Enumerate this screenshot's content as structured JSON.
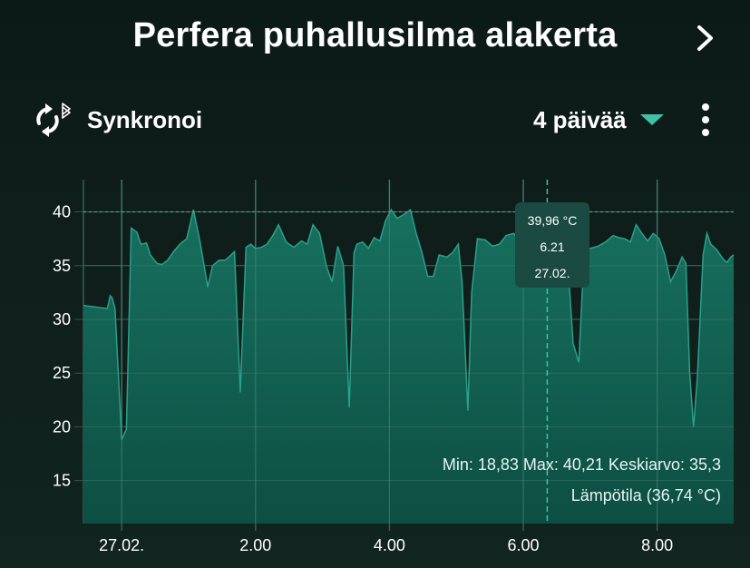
{
  "header": {
    "title": "Perfera puhallusilma alakerta",
    "next_icon": "chevron-right-icon"
  },
  "toolbar": {
    "sync_label": "Synkronoi",
    "sync_icon": "sync-bluetooth-icon",
    "range_label": "4 päivää",
    "range_caret_icon": "caret-down-icon",
    "more_icon": "more-vertical-icon"
  },
  "colors": {
    "accent": "#3fc2a7",
    "area_fill": "#0f5a4c",
    "line": "#2aa08a",
    "background": "#0f1f1b",
    "tooltip_bg": "#1a4a42"
  },
  "tooltip": {
    "temperature": "39,96 °C",
    "time": "6.21",
    "date": "27.02."
  },
  "stats_text": "Min: 18,83 Max: 40,21 Keskiarvo: 35,3",
  "legend_text": "Lämpötila (36,74 °C)",
  "chart_data": {
    "type": "area",
    "ylim": [
      11,
      43
    ],
    "yticks": [
      15,
      20,
      25,
      30,
      35,
      40
    ],
    "ytick_labels": [
      "15",
      "20",
      "25",
      "30",
      "35",
      "40"
    ],
    "xlim": [
      0,
      6.8
    ],
    "xticks": [
      0.4,
      1.8,
      3.2,
      4.6,
      6.0
    ],
    "xtick_labels": [
      "27.02.",
      "2.00",
      "4.00",
      "6.00",
      "8.00"
    ],
    "reference_line": 40,
    "cursor_x": 4.85,
    "grid": true,
    "series": [
      {
        "x": [
          0.0,
          0.25,
          0.28,
          0.3,
          0.33,
          0.4,
          0.45,
          0.5,
          0.56,
          0.6,
          0.66,
          0.7,
          0.77,
          0.82,
          0.88,
          0.95,
          1.02,
          1.08,
          1.15,
          1.22,
          1.3,
          1.35,
          1.42,
          1.48,
          1.52,
          1.58,
          1.64,
          1.7,
          1.75,
          1.8,
          1.86,
          1.92,
          1.98,
          2.04,
          2.12,
          2.2,
          2.28,
          2.34,
          2.4,
          2.47,
          2.54,
          2.6,
          2.66,
          2.72,
          2.78,
          2.83,
          2.86,
          2.92,
          2.98,
          3.04,
          3.1,
          3.16,
          3.22,
          3.28,
          3.34,
          3.42,
          3.48,
          3.54,
          3.6,
          3.66,
          3.72,
          3.8,
          3.86,
          3.92,
          3.96,
          4.02,
          4.06,
          4.12,
          4.2,
          4.28,
          4.35,
          4.42,
          4.5,
          4.56,
          4.62,
          4.7,
          4.76,
          4.82,
          4.88,
          4.94,
          5.0,
          5.06,
          5.12,
          5.18,
          5.24,
          5.3,
          5.38,
          5.46,
          5.54,
          5.6,
          5.66,
          5.72,
          5.78,
          5.84,
          5.9,
          5.96,
          6.02,
          6.08,
          6.14,
          6.2,
          6.26,
          6.3,
          6.34,
          6.38,
          6.42,
          6.48,
          6.52,
          6.56,
          6.62,
          6.66,
          6.7,
          6.73,
          6.77,
          6.8
        ],
        "y": [
          31.3,
          31.0,
          32.2,
          32.0,
          31.0,
          18.8,
          19.8,
          38.5,
          38.1,
          37.0,
          37.1,
          36.0,
          35.2,
          35.1,
          35.5,
          36.4,
          37.1,
          37.5,
          40.2,
          37.2,
          33.0,
          35.0,
          35.5,
          35.5,
          35.8,
          36.3,
          23.2,
          36.7,
          37.0,
          36.6,
          36.7,
          37.0,
          37.8,
          38.8,
          37.2,
          36.7,
          37.3,
          37.0,
          38.8,
          38.0,
          35.0,
          33.5,
          36.8,
          35.0,
          21.8,
          36.2,
          37.0,
          37.2,
          36.6,
          37.6,
          37.3,
          39.2,
          40.2,
          39.4,
          39.7,
          40.2,
          38.0,
          36.2,
          34.0,
          34.0,
          36.0,
          35.8,
          36.2,
          37.0,
          33.5,
          21.5,
          32.5,
          37.5,
          37.4,
          36.8,
          37.0,
          37.8,
          38.0,
          37.2,
          37.4,
          39.96,
          38.2,
          37.4,
          37.2,
          37.8,
          37.8,
          36.2,
          27.8,
          26.0,
          36.8,
          36.6,
          36.8,
          37.2,
          37.8,
          37.6,
          37.5,
          37.2,
          38.8,
          38.0,
          37.3,
          38.0,
          37.5,
          36.0,
          33.5,
          34.5,
          35.8,
          35.2,
          25.0,
          20.0,
          24.5,
          36.0,
          38.0,
          37.0,
          36.5,
          36.0,
          35.5,
          35.3,
          35.8,
          36.0
        ]
      }
    ]
  }
}
